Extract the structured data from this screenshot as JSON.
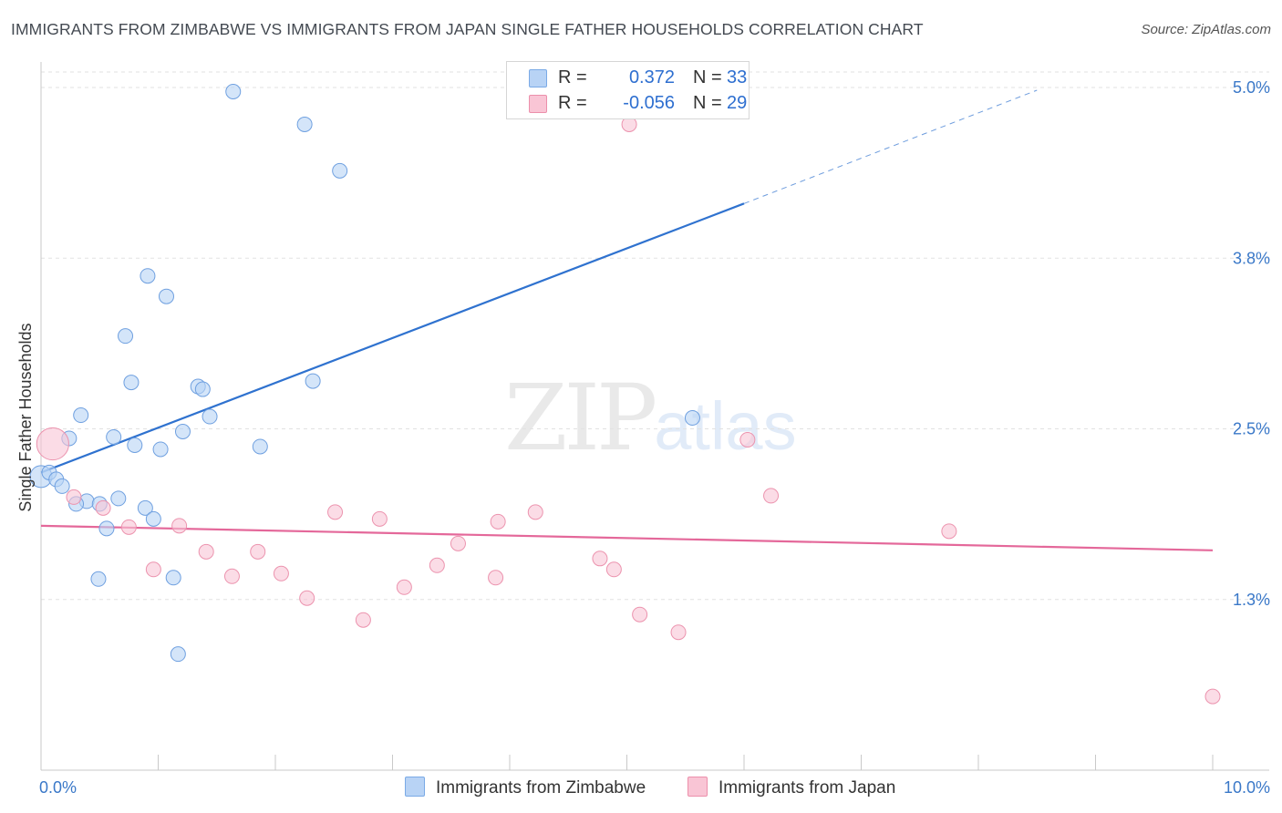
{
  "title": "IMMIGRANTS FROM ZIMBABWE VS IMMIGRANTS FROM JAPAN SINGLE FATHER HOUSEHOLDS CORRELATION CHART",
  "source": "Source: ZipAtlas.com",
  "watermark": {
    "zip": "ZIP",
    "atlas": "atlas"
  },
  "legend": {
    "rows": [
      {
        "r_label": "R =",
        "r_value": "0.372",
        "n_label": "N =",
        "n_value": "33",
        "color": "#b8d3f5",
        "border": "#7aaae6"
      },
      {
        "r_label": "R =",
        "r_value": "-0.056",
        "n_label": "N =",
        "n_value": "29",
        "color": "#f9c5d5",
        "border": "#ec8fab"
      }
    ]
  },
  "bottom_legend": {
    "zimbabwe": "Immigrants from Zimbabwe",
    "japan": "Immigrants from Japan"
  },
  "colors": {
    "zimbabwe_fill": "#b8d3f5",
    "zimbabwe_stroke": "#6fa0e0",
    "zimbabwe_line": "#2f72cf",
    "japan_fill": "#f9c5d5",
    "japan_stroke": "#ec93ae",
    "japan_line": "#e4689a",
    "grid": "#e2e2e2",
    "tick_text": "#3a78c8"
  },
  "chart_data": {
    "type": "scatter",
    "title": "IMMIGRANTS FROM ZIMBABWE VS IMMIGRANTS FROM JAPAN SINGLE FATHER HOUSEHOLDS CORRELATION CHART",
    "xlabel": "",
    "ylabel": "Single Father Households",
    "xlim": [
      0,
      10
    ],
    "ylim": [
      0,
      5.25
    ],
    "x_tick_labels": [
      "0.0%",
      "10.0%"
    ],
    "y_ticks": [
      1.25,
      2.5,
      3.75,
      5.0
    ],
    "y_tick_labels": [
      "1.3%",
      "2.5%",
      "3.8%",
      "5.0%"
    ],
    "grid": true,
    "legend_position": "top-center",
    "series": [
      {
        "name": "Immigrants from Zimbabwe",
        "r": 0.372,
        "n": 33,
        "trend": {
          "x0": 0.0,
          "y0": 2.18,
          "x1": 6.0,
          "y1": 4.15,
          "dashed_to_x": 8.5,
          "dashed_to_y": 4.98
        },
        "points": [
          {
            "x": 1.64,
            "y": 4.97,
            "s": 1
          },
          {
            "x": 2.25,
            "y": 4.73,
            "s": 1
          },
          {
            "x": 2.55,
            "y": 4.39,
            "s": 1
          },
          {
            "x": 0.91,
            "y": 3.62,
            "s": 1
          },
          {
            "x": 1.07,
            "y": 3.47,
            "s": 1
          },
          {
            "x": 0.72,
            "y": 3.18,
            "s": 1
          },
          {
            "x": 0.77,
            "y": 2.84,
            "s": 1
          },
          {
            "x": 1.34,
            "y": 2.81,
            "s": 1
          },
          {
            "x": 1.38,
            "y": 2.79,
            "s": 1
          },
          {
            "x": 2.32,
            "y": 2.85,
            "s": 1
          },
          {
            "x": 0.34,
            "y": 2.6,
            "s": 1
          },
          {
            "x": 1.44,
            "y": 2.59,
            "s": 1
          },
          {
            "x": 1.21,
            "y": 2.48,
            "s": 1
          },
          {
            "x": 0.24,
            "y": 2.43,
            "s": 1
          },
          {
            "x": 0.62,
            "y": 2.44,
            "s": 1
          },
          {
            "x": 0.8,
            "y": 2.38,
            "s": 1
          },
          {
            "x": 1.02,
            "y": 2.35,
            "s": 1
          },
          {
            "x": 1.87,
            "y": 2.37,
            "s": 1
          },
          {
            "x": 5.56,
            "y": 2.58,
            "s": 1
          },
          {
            "x": 0.0,
            "y": 2.15,
            "s": 1.5
          },
          {
            "x": 0.07,
            "y": 2.18,
            "s": 1
          },
          {
            "x": 0.13,
            "y": 2.13,
            "s": 1
          },
          {
            "x": 0.18,
            "y": 2.08,
            "s": 1
          },
          {
            "x": 0.39,
            "y": 1.97,
            "s": 1
          },
          {
            "x": 0.5,
            "y": 1.95,
            "s": 1
          },
          {
            "x": 0.66,
            "y": 1.99,
            "s": 1
          },
          {
            "x": 0.89,
            "y": 1.92,
            "s": 1
          },
          {
            "x": 0.3,
            "y": 1.95,
            "s": 1
          },
          {
            "x": 0.96,
            "y": 1.84,
            "s": 1
          },
          {
            "x": 0.56,
            "y": 1.77,
            "s": 1
          },
          {
            "x": 0.49,
            "y": 1.4,
            "s": 1
          },
          {
            "x": 1.13,
            "y": 1.41,
            "s": 1
          },
          {
            "x": 1.17,
            "y": 0.85,
            "s": 1
          }
        ]
      },
      {
        "name": "Immigrants from Japan",
        "r": -0.056,
        "n": 29,
        "trend": {
          "x0": 0.0,
          "y0": 1.79,
          "x1": 10.0,
          "y1": 1.61
        },
        "points": [
          {
            "x": 0.1,
            "y": 2.39,
            "s": 2.2
          },
          {
            "x": 0.28,
            "y": 2.0,
            "s": 1
          },
          {
            "x": 0.53,
            "y": 1.92,
            "s": 1
          },
          {
            "x": 0.75,
            "y": 1.78,
            "s": 1
          },
          {
            "x": 1.18,
            "y": 1.79,
            "s": 1
          },
          {
            "x": 0.96,
            "y": 1.47,
            "s": 1
          },
          {
            "x": 1.41,
            "y": 1.6,
            "s": 1
          },
          {
            "x": 1.63,
            "y": 1.42,
            "s": 1
          },
          {
            "x": 1.85,
            "y": 1.6,
            "s": 1
          },
          {
            "x": 2.05,
            "y": 1.44,
            "s": 1
          },
          {
            "x": 2.27,
            "y": 1.26,
            "s": 1
          },
          {
            "x": 2.51,
            "y": 1.89,
            "s": 1
          },
          {
            "x": 2.75,
            "y": 1.1,
            "s": 1
          },
          {
            "x": 2.89,
            "y": 1.84,
            "s": 1
          },
          {
            "x": 3.1,
            "y": 1.34,
            "s": 1
          },
          {
            "x": 3.38,
            "y": 1.5,
            "s": 1
          },
          {
            "x": 3.56,
            "y": 1.66,
            "s": 1
          },
          {
            "x": 3.88,
            "y": 1.41,
            "s": 1
          },
          {
            "x": 3.9,
            "y": 1.82,
            "s": 1
          },
          {
            "x": 4.22,
            "y": 1.89,
            "s": 1
          },
          {
            "x": 4.77,
            "y": 1.55,
            "s": 1
          },
          {
            "x": 4.89,
            "y": 1.47,
            "s": 1
          },
          {
            "x": 5.02,
            "y": 4.73,
            "s": 1
          },
          {
            "x": 5.11,
            "y": 1.14,
            "s": 1
          },
          {
            "x": 5.44,
            "y": 1.01,
            "s": 1
          },
          {
            "x": 6.03,
            "y": 2.42,
            "s": 1
          },
          {
            "x": 6.23,
            "y": 2.01,
            "s": 1
          },
          {
            "x": 7.75,
            "y": 1.75,
            "s": 1
          },
          {
            "x": 10.0,
            "y": 0.54,
            "s": 1
          }
        ]
      }
    ]
  }
}
